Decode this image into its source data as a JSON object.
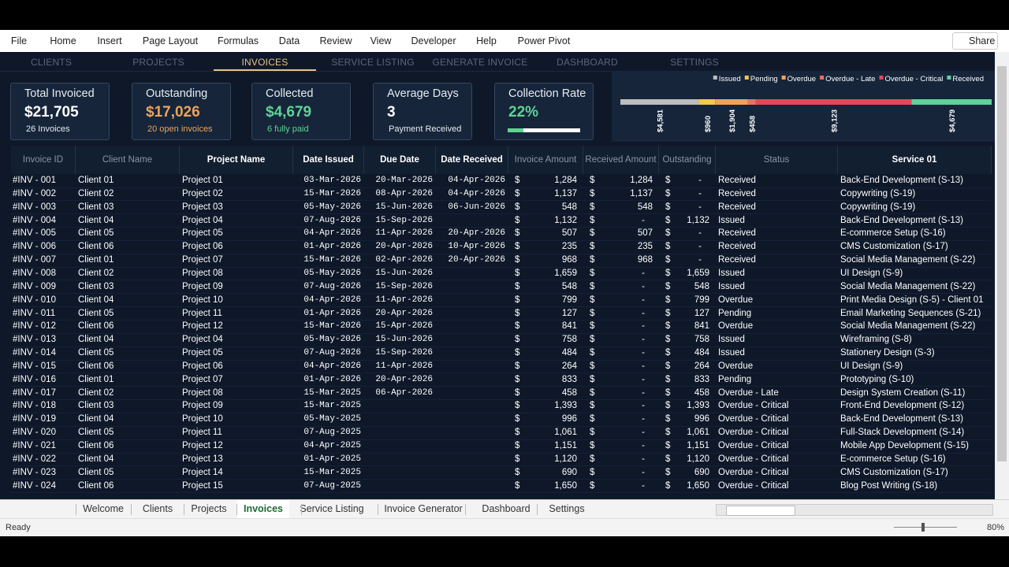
{
  "ribbon": {
    "menu": [
      "File",
      "Home",
      "Insert",
      "Page Layout",
      "Formulas",
      "Data",
      "Review",
      "View",
      "Developer",
      "Help",
      "Power Pivot"
    ],
    "share": "Share"
  },
  "nav": {
    "tabs": [
      "CLIENTS",
      "PROJECTS",
      "INVOICES",
      "SERVICE LISTING",
      "GENERATE INVOICE",
      "DASHBOARD",
      "SETTINGS"
    ],
    "active": 2
  },
  "kpis": [
    {
      "title": "Total Invoiced",
      "value": "$21,705",
      "sub": "26 Invoices",
      "accent": "#ffffff"
    },
    {
      "title": "Outstanding",
      "value": "$17,026",
      "sub": "20 open invoices",
      "accent": "#eba35a"
    },
    {
      "title": "Collected",
      "value": "$4,679",
      "sub": "6 fully paid",
      "accent": "#5fd393"
    },
    {
      "title": "Average Days",
      "value": "3",
      "sub": "Payment Received",
      "accent": "#ffffff"
    },
    {
      "title": "Collection Rate",
      "value": 22,
      "value_label": "22%",
      "accent": "#5fd393"
    }
  ],
  "chart": {
    "type": "stacked-bar",
    "series": [
      {
        "name": "Issued",
        "color": "#bdbdbd",
        "value": 4581,
        "value_label": "$4,581"
      },
      {
        "name": "Pending",
        "color": "#f2c94c",
        "value": 960,
        "value_label": "$960"
      },
      {
        "name": "Overdue",
        "color": "#f0a25a",
        "value": 1904,
        "value_label": "$1,904"
      },
      {
        "name": "Overdue - Late",
        "color": "#e8735f",
        "value": 458,
        "value_label": "$458"
      },
      {
        "name": "Overdue - Critical",
        "color": "#e5475a",
        "value": 9123,
        "value_label": "$9,123"
      },
      {
        "name": "Received",
        "color": "#5fd39a",
        "value": 4679,
        "value_label": "$4,679"
      }
    ]
  },
  "table": {
    "columns": [
      "Invoice ID",
      "Client Name",
      "Project Name",
      "Date Issued",
      "Due Date",
      "Date Received",
      "Invoice Amount",
      "Received Amount",
      "Outstanding",
      "Status",
      "Service 01"
    ],
    "currency": "$",
    "rows": [
      [
        "#INV - 001",
        "Client 01",
        "Project 01",
        "03-Mar-2026",
        "20-Mar-2026",
        "04-Apr-2026",
        "1,284",
        "1,284",
        "-",
        "Received",
        "Back-End Development (S-13)"
      ],
      [
        "#INV - 002",
        "Client 02",
        "Project 02",
        "15-Mar-2026",
        "08-Apr-2026",
        "04-Apr-2026",
        "1,137",
        "1,137",
        "-",
        "Received",
        "Copywriting (S-19)"
      ],
      [
        "#INV - 003",
        "Client 03",
        "Project 03",
        "05-May-2026",
        "15-Jun-2026",
        "06-Jun-2026",
        "548",
        "548",
        "-",
        "Received",
        "Copywriting (S-19)"
      ],
      [
        "#INV - 004",
        "Client 04",
        "Project 04",
        "07-Aug-2026",
        "15-Sep-2026",
        null,
        "1,132",
        "-",
        "1,132",
        "Issued",
        "Back-End Development (S-13)"
      ],
      [
        "#INV - 005",
        "Client 05",
        "Project 05",
        "04-Apr-2026",
        "11-Apr-2026",
        "20-Apr-2026",
        "507",
        "507",
        "-",
        "Received",
        "E-commerce Setup (S-16)"
      ],
      [
        "#INV - 006",
        "Client 06",
        "Project 06",
        "01-Apr-2026",
        "20-Apr-2026",
        "10-Apr-2026",
        "235",
        "235",
        "-",
        "Received",
        "CMS Customization (S-17)"
      ],
      [
        "#INV - 007",
        "Client 01",
        "Project 07",
        "15-Mar-2026",
        "02-Apr-2026",
        "20-Apr-2026",
        "968",
        "968",
        "-",
        "Received",
        "Social Media Management (S-22)"
      ],
      [
        "#INV - 008",
        "Client 02",
        "Project 08",
        "05-May-2026",
        "15-Jun-2026",
        null,
        "1,659",
        "-",
        "1,659",
        "Issued",
        "UI Design (S-9)"
      ],
      [
        "#INV - 009",
        "Client 03",
        "Project 09",
        "07-Aug-2026",
        "15-Sep-2026",
        null,
        "548",
        "-",
        "548",
        "Issued",
        "Social Media Management (S-22)"
      ],
      [
        "#INV - 010",
        "Client 04",
        "Project 10",
        "04-Apr-2026",
        "11-Apr-2026",
        null,
        "799",
        "-",
        "799",
        "Overdue",
        "Print Media Design (S-5) - Client 01"
      ],
      [
        "#INV - 011",
        "Client 05",
        "Project 11",
        "01-Apr-2026",
        "20-Apr-2026",
        null,
        "127",
        "-",
        "127",
        "Pending",
        "Email Marketing Sequences (S-21)"
      ],
      [
        "#INV - 012",
        "Client 06",
        "Project 12",
        "15-Mar-2026",
        "15-Apr-2026",
        null,
        "841",
        "-",
        "841",
        "Overdue",
        "Social Media Management (S-22)"
      ],
      [
        "#INV - 013",
        "Client 04",
        "Project 04",
        "05-May-2026",
        "15-Jun-2026",
        null,
        "758",
        "-",
        "758",
        "Issued",
        "Wireframing (S-8)"
      ],
      [
        "#INV - 014",
        "Client 05",
        "Project 05",
        "07-Aug-2026",
        "15-Sep-2026",
        null,
        "484",
        "-",
        "484",
        "Issued",
        "Stationery Design (S-3)"
      ],
      [
        "#INV - 015",
        "Client 06",
        "Project 06",
        "04-Apr-2026",
        "11-Apr-2026",
        null,
        "264",
        "-",
        "264",
        "Overdue",
        "UI Design (S-9)"
      ],
      [
        "#INV - 016",
        "Client 01",
        "Project 07",
        "01-Apr-2026",
        "20-Apr-2026",
        null,
        "833",
        "-",
        "833",
        "Pending",
        "Prototyping (S-10)"
      ],
      [
        "#INV - 017",
        "Client 02",
        "Project 08",
        "15-Mar-2025",
        "06-Apr-2026",
        null,
        "458",
        "-",
        "458",
        "Overdue - Late",
        "Design System Creation (S-11)"
      ],
      [
        "#INV - 018",
        "Client 03",
        "Project 09",
        "15-Mar-2025",
        null,
        null,
        "1,393",
        "-",
        "1,393",
        "Overdue - Critical",
        "Front-End Development (S-12)"
      ],
      [
        "#INV - 019",
        "Client 04",
        "Project 10",
        "05-May-2025",
        null,
        null,
        "996",
        "-",
        "996",
        "Overdue - Critical",
        "Back-End Development (S-13)"
      ],
      [
        "#INV - 020",
        "Client 05",
        "Project 11",
        "07-Aug-2025",
        null,
        null,
        "1,061",
        "-",
        "1,061",
        "Overdue - Critical",
        "Full-Stack Development (S-14)"
      ],
      [
        "#INV - 021",
        "Client 06",
        "Project 12",
        "04-Apr-2025",
        null,
        null,
        "1,151",
        "-",
        "1,151",
        "Overdue - Critical",
        "Mobile App Development (S-15)"
      ],
      [
        "#INV - 022",
        "Client 04",
        "Project 13",
        "01-Apr-2025",
        null,
        null,
        "1,120",
        "-",
        "1,120",
        "Overdue - Critical",
        "E-commerce Setup (S-16)"
      ],
      [
        "#INV - 023",
        "Client 05",
        "Project 14",
        "15-Mar-2025",
        null,
        null,
        "690",
        "-",
        "690",
        "Overdue - Critical",
        "CMS Customization (S-17)"
      ],
      [
        "#INV - 024",
        "Client 06",
        "Project 15",
        "07-Aug-2025",
        null,
        null,
        "1,650",
        "-",
        "1,650",
        "Overdue - Critical",
        "Blog Post Writing (S-18)"
      ]
    ]
  },
  "sheet_tabs": {
    "tabs": [
      "Welcome",
      "Clients",
      "Projects",
      "Invoices",
      "Service Listing",
      "Invoice Generator",
      "Dashboard",
      "Settings"
    ],
    "active": 3
  },
  "status_bar": {
    "status": "Ready",
    "zoom": "80%"
  }
}
